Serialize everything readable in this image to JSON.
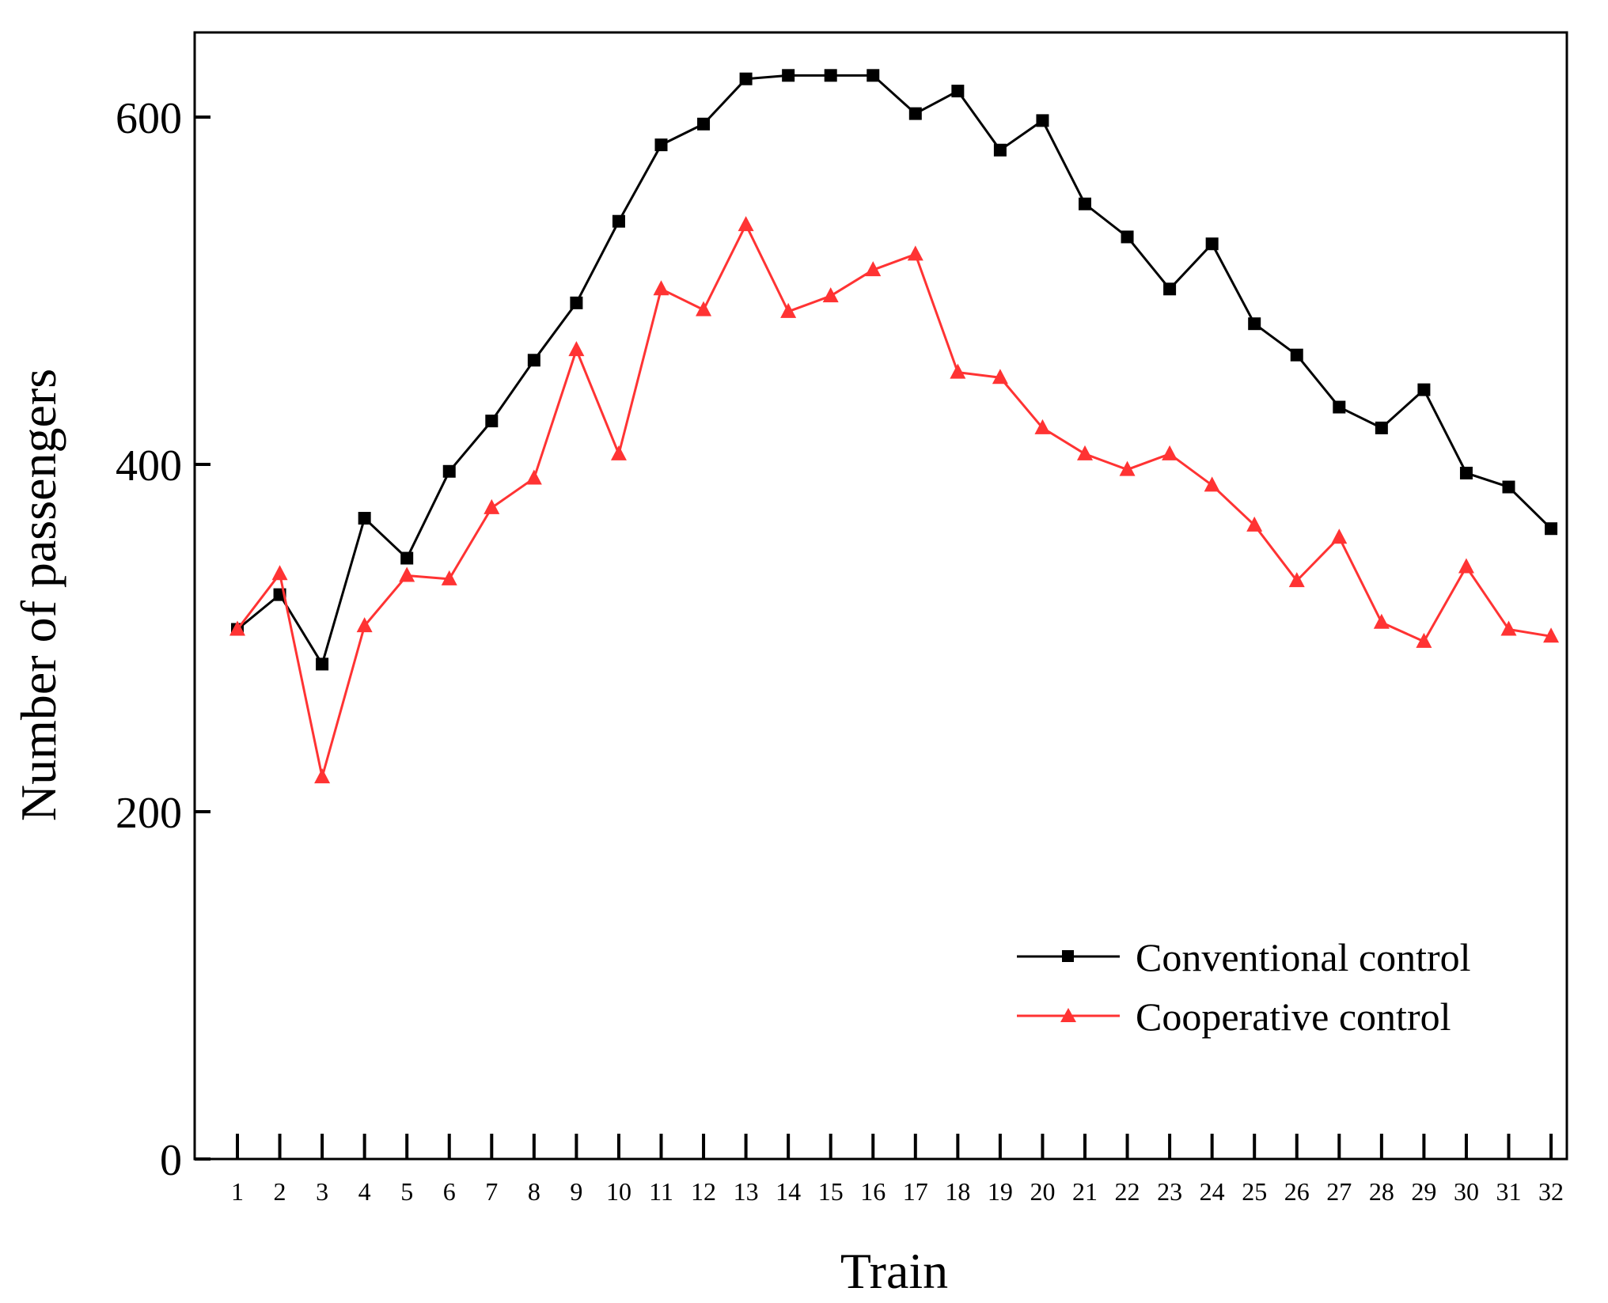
{
  "chart_data": {
    "type": "line",
    "title": "",
    "xlabel": "Train",
    "ylabel": "Number of passengers",
    "x": [
      1,
      2,
      3,
      4,
      5,
      6,
      7,
      8,
      9,
      10,
      11,
      12,
      13,
      14,
      15,
      16,
      17,
      18,
      19,
      20,
      21,
      22,
      23,
      24,
      25,
      26,
      27,
      28,
      29,
      30,
      31,
      32
    ],
    "ylim": [
      0,
      650
    ],
    "yticks": [
      0,
      200,
      400,
      600
    ],
    "legend_position": "bottom-right",
    "series": [
      {
        "name": "Conventional control",
        "color": "#000000",
        "marker": "square",
        "values": [
          305,
          325,
          285,
          369,
          346,
          396,
          425,
          460,
          493,
          540,
          584,
          596,
          622,
          624,
          624,
          624,
          602,
          615,
          581,
          598,
          550,
          531,
          501,
          527,
          481,
          463,
          433,
          421,
          443,
          395,
          387,
          363
        ]
      },
      {
        "name": "Cooperative control",
        "color": "#ff3333",
        "marker": "triangle",
        "values": [
          305,
          337,
          220,
          307,
          336,
          334,
          375,
          392,
          466,
          406,
          501,
          489,
          538,
          488,
          497,
          512,
          521,
          453,
          450,
          421,
          406,
          397,
          406,
          388,
          365,
          333,
          358,
          309,
          298,
          341,
          305,
          301
        ]
      }
    ]
  }
}
